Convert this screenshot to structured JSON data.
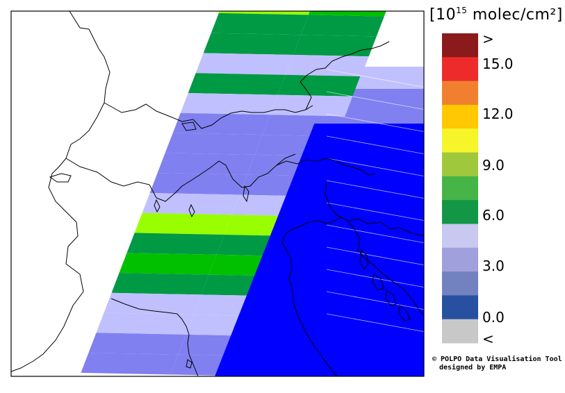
{
  "colorbar": {
    "unit_prefix": "[10",
    "unit_exp": "15",
    "unit_suffix": " molec/cm²]",
    "ticks": {
      "above": ">",
      "t15": "15.0",
      "t12": "12.0",
      "t9": "9.0",
      "t6": "6.0",
      "t3": "3.0",
      "t0": "0.0",
      "below": "<"
    },
    "bins": [
      {
        "range": "> 16.5",
        "color": "#8b1a1a"
      },
      {
        "range": "15.0–16.5",
        "color": "#ee2b2b"
      },
      {
        "range": "13.5–15.0",
        "color": "#f08030"
      },
      {
        "range": "12.0–13.5",
        "color": "#ffc800"
      },
      {
        "range": "10.5–12.0",
        "color": "#f5f52a"
      },
      {
        "range": "9.0–10.5",
        "color": "#a0c83c"
      },
      {
        "range": "7.5–9.0",
        "color": "#46b446"
      },
      {
        "range": "6.0–7.5",
        "color": "#139646"
      },
      {
        "range": "4.5–6.0",
        "color": "#c8c8f0"
      },
      {
        "range": "3.0–4.5",
        "color": "#a0a0dc"
      },
      {
        "range": "1.5–3.0",
        "color": "#7282c0"
      },
      {
        "range": "0.0–1.5",
        "color": "#2850a0"
      },
      {
        "range": "< 0.0",
        "color": "#c8c8c8"
      }
    ]
  },
  "swath_colors": {
    "lime": "#99ff00",
    "green_bright": "#00c000",
    "green_dark": "#009944",
    "lavender": "#c0c0ff",
    "periwinkle": "#8080f0",
    "blue": "#0000ff",
    "blue_dark": "#0000e0"
  },
  "credit": {
    "line1": "© POLPO Data Visualisation Tool",
    "line2": "designed by EMPA"
  }
}
